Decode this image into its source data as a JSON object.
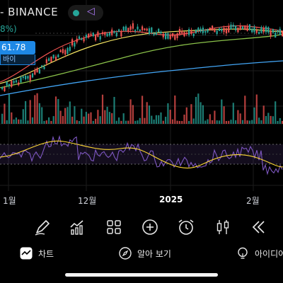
{
  "header": {
    "title_fragment": "- BINANCE",
    "change_fragment": "8%)",
    "live_color": "#26a69a",
    "indicator_icon": "triangle-share-icon"
  },
  "price_label": {
    "value": "61.78",
    "sub": "바이"
  },
  "x_axis": {
    "labels": [
      "1월",
      "12월",
      "2025",
      "2월"
    ]
  },
  "toolbar": {
    "tools": [
      "pen-icon",
      "indicators-icon",
      "grid-icon",
      "add-icon",
      "alarm-icon",
      "candles-icon",
      "rewind-icon"
    ]
  },
  "nav": {
    "chart_label": "차트",
    "explore_label": "알아 보기",
    "ideas_label": "아이디어"
  },
  "colors": {
    "up": "#26a69a",
    "down": "#ef5350",
    "ma_short": "#ef5350",
    "ma_mid": "#f5e663",
    "ma_long": "#8bc34a",
    "ma_longest": "#42a5f5",
    "rsi": "#7e57c2",
    "rsi_ma": "#fdd835"
  }
}
